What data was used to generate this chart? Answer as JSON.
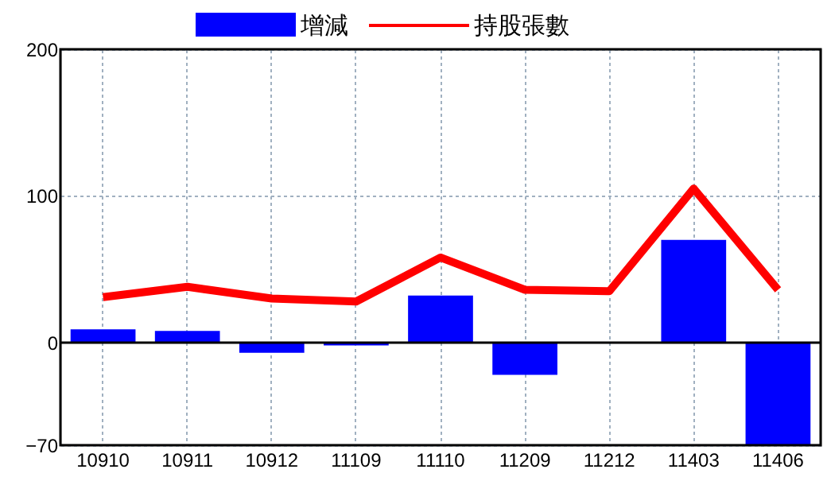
{
  "chart_data": {
    "type": "bar",
    "categories": [
      "10910",
      "10911",
      "10912",
      "11109",
      "11110",
      "11209",
      "11212",
      "11403",
      "11406"
    ],
    "series": [
      {
        "name": "增減",
        "color": "#0000ff",
        "values": [
          9,
          8,
          -7,
          -2,
          32,
          -22,
          0,
          70,
          -70
        ]
      },
      {
        "name": "持股張數",
        "type": "line",
        "color": "#ff0000",
        "values": [
          31,
          38,
          30,
          28,
          58,
          36,
          35,
          105,
          36
        ]
      }
    ],
    "ylim": [
      -70,
      200
    ],
    "yticks": [
      -70,
      0,
      100,
      200
    ],
    "grid": true,
    "legend": "top",
    "ref_lines": [
      {
        "axis": "y",
        "value": 0,
        "color": "#000000"
      }
    ]
  }
}
